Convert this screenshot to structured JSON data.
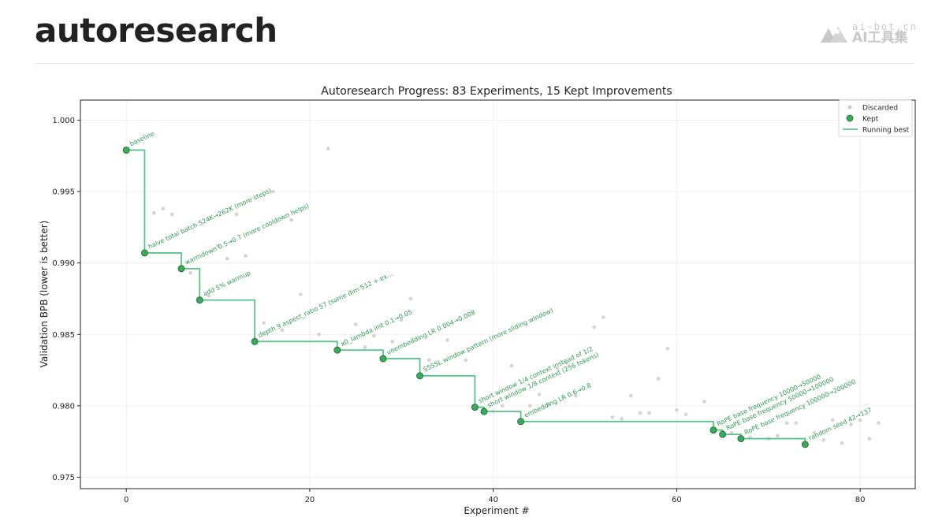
{
  "header": {
    "title": "autoresearch",
    "watermark_top": "ai-bot.cn",
    "watermark_bottom": "AI工具集"
  },
  "chart_data": {
    "type": "scatter",
    "title": "Autoresearch Progress: 83 Experiments, 15 Kept Improvements",
    "xlabel": "Experiment #",
    "ylabel": "Validation BPB (lower is better)",
    "xlim": [
      -5,
      86
    ],
    "ylim": [
      0.9742,
      1.0014
    ],
    "xticks": [
      0,
      20,
      40,
      60,
      80
    ],
    "yticks": [
      0.975,
      0.98,
      0.985,
      0.99,
      0.995,
      1.0
    ],
    "ytick_labels": [
      "0.975",
      "0.980",
      "0.985",
      "0.990",
      "0.995",
      "1.000"
    ],
    "grid": true,
    "legend_position": "top-right",
    "legend": [
      "Discarded",
      "Kept",
      "Running best"
    ],
    "colors": {
      "kept": "#3aaa5c",
      "kept_edge": "#1e6b35",
      "running": "#5cc48a",
      "discarded": "#cccccc",
      "annotation": "#2e9a52"
    },
    "kept": [
      {
        "x": 0,
        "y": 0.9979,
        "label": "baseline"
      },
      {
        "x": 2,
        "y": 0.9907,
        "label": "halve total batch 524K→262K (more steps)"
      },
      {
        "x": 6,
        "y": 0.9896,
        "label": "warmdown 0.5→0.7 (more cooldown helps)"
      },
      {
        "x": 8,
        "y": 0.9874,
        "label": "add 5% warmup"
      },
      {
        "x": 14,
        "y": 0.9845,
        "label": "depth 9 aspect_ratio 57 (same dim 512 + ex..."
      },
      {
        "x": 23,
        "y": 0.9839,
        "label": "x0_lambda init 0.1→0.05"
      },
      {
        "x": 28,
        "y": 0.9833,
        "label": "unembedding LR 0.004→0.008"
      },
      {
        "x": 32,
        "y": 0.9821,
        "label": "SSSSL window pattern (more sliding window)"
      },
      {
        "x": 38,
        "y": 0.9799,
        "label": "short window 1/4 context instead of 1/2"
      },
      {
        "x": 39,
        "y": 0.9796,
        "label": "short window 1/8 context (256 tokens)"
      },
      {
        "x": 43,
        "y": 0.9789,
        "label": "embedding LR 0.6→0.8"
      },
      {
        "x": 64,
        "y": 0.9783,
        "label": "RoPE base frequency 10000→50000"
      },
      {
        "x": 65,
        "y": 0.978,
        "label": "RoPE base frequency 50000→100000"
      },
      {
        "x": 67,
        "y": 0.9777,
        "label": "RoPE base frequency 100000→200000"
      },
      {
        "x": 74,
        "y": 0.9773,
        "label": "random seed 42→137"
      }
    ],
    "discarded": [
      {
        "x": 3,
        "y": 0.9935
      },
      {
        "x": 4,
        "y": 0.9938
      },
      {
        "x": 5,
        "y": 0.9934
      },
      {
        "x": 7,
        "y": 0.9893
      },
      {
        "x": 9,
        "y": 0.9877
      },
      {
        "x": 10,
        "y": 0.9912
      },
      {
        "x": 11,
        "y": 0.9903
      },
      {
        "x": 12,
        "y": 0.9934
      },
      {
        "x": 13,
        "y": 0.9905
      },
      {
        "x": 15,
        "y": 0.9858
      },
      {
        "x": 16,
        "y": 0.995
      },
      {
        "x": 17,
        "y": 0.9853
      },
      {
        "x": 18,
        "y": 0.993
      },
      {
        "x": 19,
        "y": 0.9878
      },
      {
        "x": 21,
        "y": 0.985
      },
      {
        "x": 22,
        "y": 0.998
      },
      {
        "x": 25,
        "y": 0.9857
      },
      {
        "x": 26,
        "y": 0.9841
      },
      {
        "x": 27,
        "y": 0.9849
      },
      {
        "x": 29,
        "y": 0.9845
      },
      {
        "x": 30,
        "y": 0.986
      },
      {
        "x": 31,
        "y": 0.9875
      },
      {
        "x": 33,
        "y": 0.9832
      },
      {
        "x": 35,
        "y": 0.9846
      },
      {
        "x": 37,
        "y": 0.9832
      },
      {
        "x": 40,
        "y": 0.9796
      },
      {
        "x": 41,
        "y": 0.98
      },
      {
        "x": 42,
        "y": 0.9828
      },
      {
        "x": 44,
        "y": 0.98
      },
      {
        "x": 45,
        "y": 0.9808
      },
      {
        "x": 46,
        "y": 0.9801
      },
      {
        "x": 47,
        "y": 0.9826
      },
      {
        "x": 48,
        "y": 0.983
      },
      {
        "x": 49,
        "y": 0.9807
      },
      {
        "x": 51,
        "y": 0.9855
      },
      {
        "x": 52,
        "y": 0.9862
      },
      {
        "x": 53,
        "y": 0.9792
      },
      {
        "x": 54,
        "y": 0.9791
      },
      {
        "x": 55,
        "y": 0.9807
      },
      {
        "x": 56,
        "y": 0.9795
      },
      {
        "x": 57,
        "y": 0.9795
      },
      {
        "x": 58,
        "y": 0.9819
      },
      {
        "x": 59,
        "y": 0.984
      },
      {
        "x": 60,
        "y": 0.9797
      },
      {
        "x": 61,
        "y": 0.9794
      },
      {
        "x": 63,
        "y": 0.9803
      },
      {
        "x": 66,
        "y": 0.9781
      },
      {
        "x": 68,
        "y": 0.9778
      },
      {
        "x": 70,
        "y": 0.9777
      },
      {
        "x": 71,
        "y": 0.9779
      },
      {
        "x": 72,
        "y": 0.9788
      },
      {
        "x": 73,
        "y": 0.9788
      },
      {
        "x": 75,
        "y": 0.9781
      },
      {
        "x": 76,
        "y": 0.9776
      },
      {
        "x": 77,
        "y": 0.979
      },
      {
        "x": 78,
        "y": 0.9774
      },
      {
        "x": 79,
        "y": 0.9787
      },
      {
        "x": 80,
        "y": 0.979
      },
      {
        "x": 81,
        "y": 0.9777
      },
      {
        "x": 82,
        "y": 0.9788
      }
    ]
  }
}
